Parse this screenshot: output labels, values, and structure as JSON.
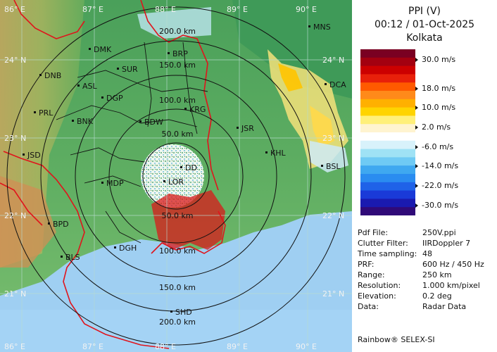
{
  "panel": {
    "title": "PPI (V)",
    "datetime": "00:12 / 01-Oct-2025",
    "station": "Kolkata",
    "scale": [
      {
        "label": "30.0 m/s",
        "color": "#7a0022"
      },
      {
        "label": "18.0 m/s",
        "color": "#ff5a00"
      },
      {
        "label": "10.0 m/s",
        "color": "#ffd400"
      },
      {
        "label": "2.0 m/s",
        "color": "#fff4d0"
      },
      {
        "label": "-6.0 m/s",
        "color": "#9fe2f5"
      },
      {
        "label": "-14.0 m/s",
        "color": "#2a8cf0"
      },
      {
        "label": "-22.0 m/s",
        "color": "#1a3ad8"
      },
      {
        "label": "-30.0 m/s",
        "color": "#300a78"
      }
    ],
    "info": [
      {
        "key": "Pdf File:",
        "value": "250V.ppi"
      },
      {
        "key": "Clutter Filter:",
        "value": "IIRDoppler 7"
      },
      {
        "key": "Time sampling:",
        "value": "48"
      },
      {
        "key": "PRF:",
        "value": "600 Hz / 450 Hz"
      },
      {
        "key": "Range:",
        "value": "250 km"
      },
      {
        "key": "Resolution:",
        "value": "1.000 km/pixel"
      },
      {
        "key": "Elevation:",
        "value": "0.2 deg"
      },
      {
        "key": "Data:",
        "value": "Radar Data"
      }
    ],
    "footer": "Rainbow® SELEX-SI"
  },
  "map": {
    "top_lon_labels": [
      "86° E",
      "87° E",
      "88° E",
      "89° E",
      "90° E"
    ],
    "bottom_lon_labels": [
      "86° E",
      "87° E",
      "88° E",
      "89° E",
      "90° E"
    ],
    "left_lat_labels": [
      "24° N",
      "23° N",
      "22° N",
      "21° N"
    ],
    "right_lat_labels": [
      "24° N",
      "23° N",
      "22° N",
      "21° N"
    ],
    "range_labels_upper": [
      "200.0 km",
      "150.0 km",
      "100.0 km",
      "50.0 km"
    ],
    "range_labels_lower": [
      "50.0 km",
      "100.0 km",
      "150.0 km",
      "200.0 km"
    ],
    "places": [
      "MNS",
      "DMK",
      "BRP",
      "DNB",
      "ASL",
      "SUR",
      "DGP",
      "DCA",
      "PRL",
      "BNK",
      "KRG",
      "JSR",
      "BDW",
      "KHL",
      "JSD",
      "DD",
      "BSL",
      "MDP",
      "LOR",
      "BPD",
      "DGH",
      "BLS",
      "SHD"
    ]
  }
}
